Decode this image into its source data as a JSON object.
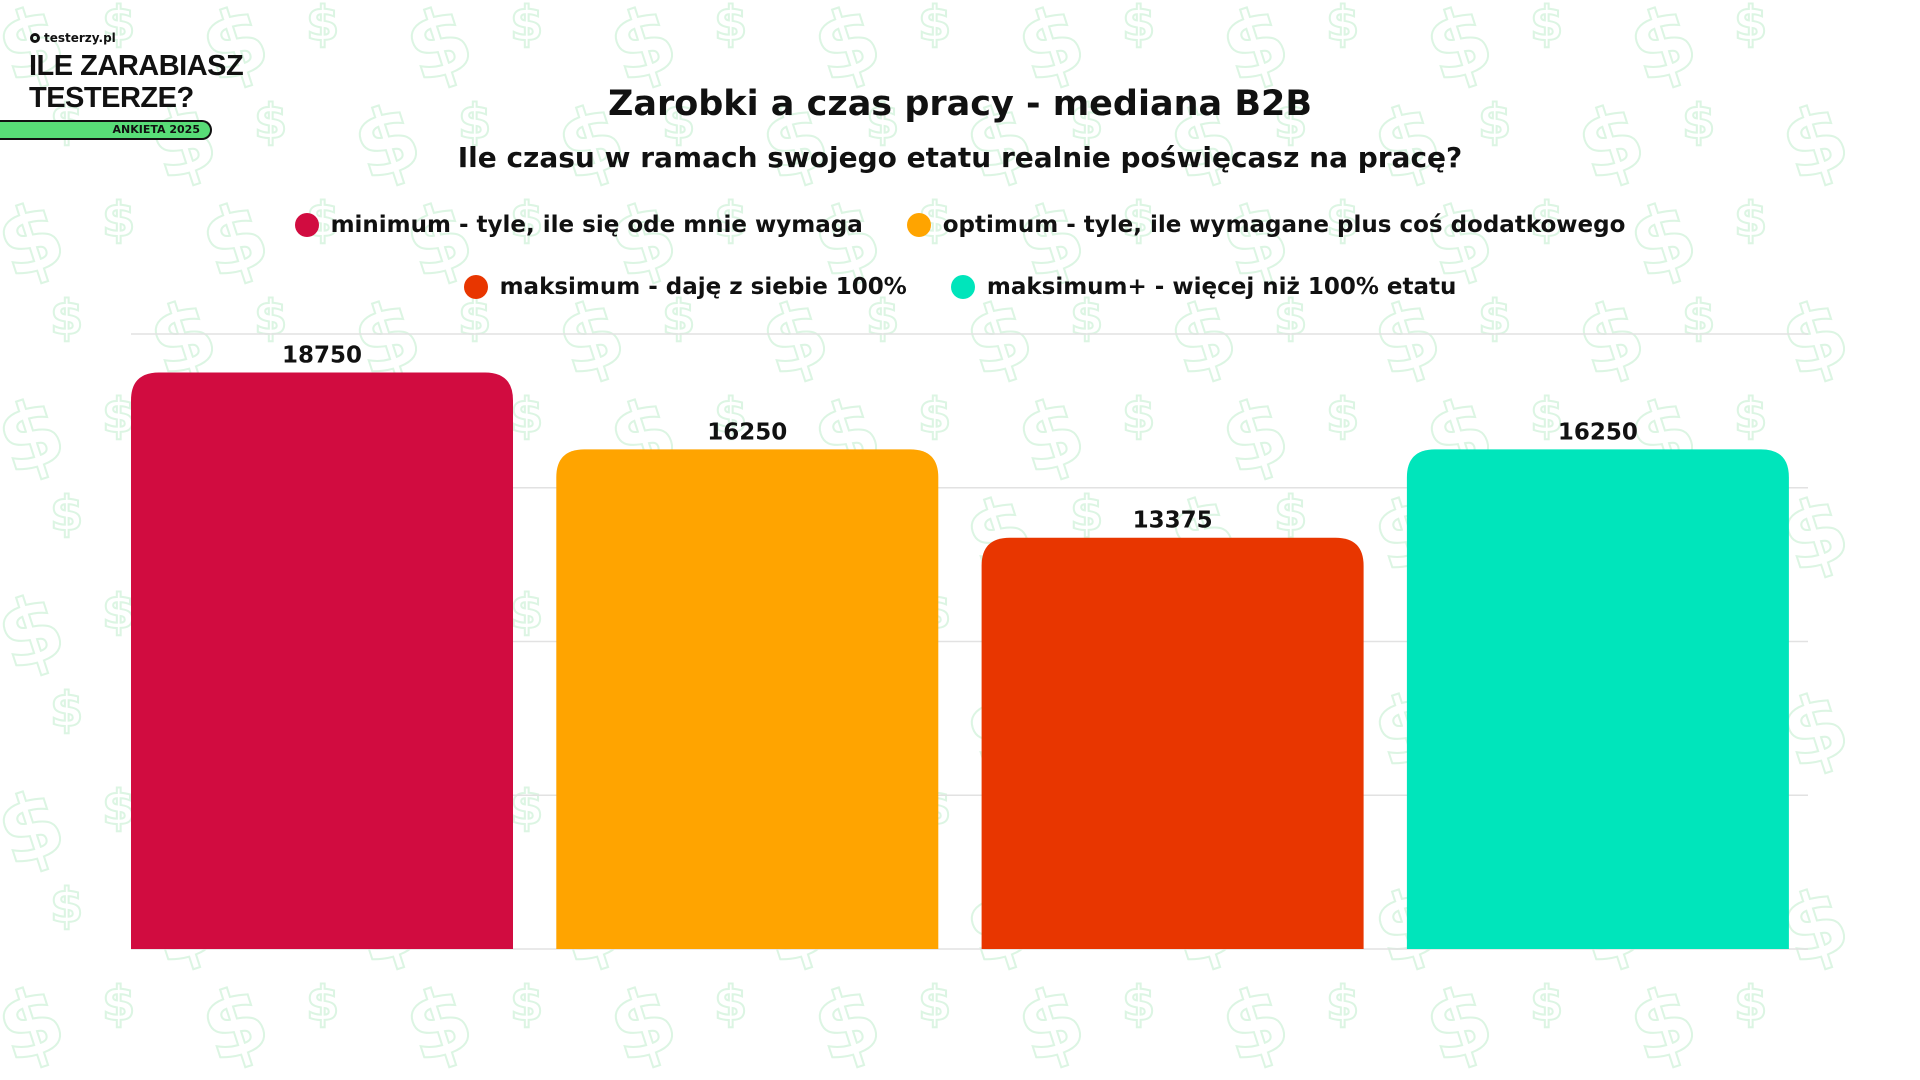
{
  "branding": {
    "site": "testerzy.pl",
    "title_line1": "ILE ZARABIASZ",
    "title_line2": "TESTERZE?",
    "badge": "ANKIETA 2025"
  },
  "chart_data": {
    "type": "bar",
    "title": "Zarobki a czas pracy - mediana B2B",
    "subtitle": "Ile czasu w ramach swojego etatu realnie poświęcasz na pracę?",
    "categories": [
      "minimum - tyle, ile się ode mnie wymaga",
      "optimum - tyle, ile wymagane plus coś dodatkowego",
      "maksimum - daję z siebie 100%",
      "maksimum+ - więcej niż 100% etatu"
    ],
    "values": [
      18750,
      16250,
      13375,
      16250
    ],
    "value_labels": [
      "18750",
      "16250",
      "13375",
      "16250"
    ],
    "colors": [
      "#d10c40",
      "#ffa400",
      "#e83600",
      "#00e5bb"
    ],
    "ylim": [
      0,
      20000
    ],
    "gridlines": [
      0,
      5000,
      10000,
      15000,
      20000
    ],
    "grid": true,
    "legend_placement": "top-center",
    "xlabel": "",
    "ylabel": ""
  }
}
